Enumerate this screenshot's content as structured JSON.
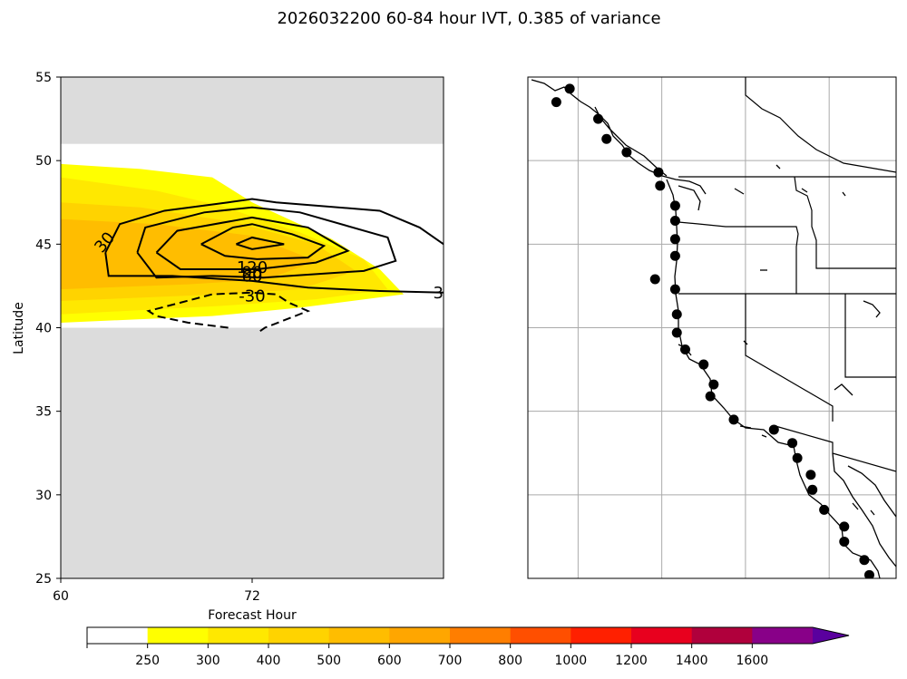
{
  "chart_data": {
    "type": "contour",
    "title": "2026032200 60-84 hour IVT, 0.385 of variance",
    "panels": [
      {
        "name": "hovmoller",
        "xlabel": "Forecast Hour",
        "ylabel": "Latitude",
        "xlim": [
          60,
          84
        ],
        "ylim": [
          25,
          55
        ],
        "xticks": [
          60,
          72
        ],
        "yticks": [
          25,
          30,
          35,
          40,
          45,
          50,
          55
        ],
        "no_data_lat_bands": [
          [
            25,
            40
          ],
          [
            51,
            55
          ]
        ],
        "filled_contours": [
          {
            "level": 250,
            "polygon": [
              [
                60,
                40.3
              ],
              [
                69.5,
                40.7
              ],
              [
                75,
                41.2
              ],
              [
                81.5,
                42
              ],
              [
                80,
                43.5
              ],
              [
                77,
                45.3
              ],
              [
                72,
                47.5
              ],
              [
                69.5,
                49
              ],
              [
                65,
                49.5
              ],
              [
                60,
                49.8
              ]
            ]
          },
          {
            "level": 300,
            "polygon": [
              [
                60,
                40.8
              ],
              [
                70,
                41.3
              ],
              [
                76,
                41.7
              ],
              [
                80.5,
                42.3
              ],
              [
                79,
                44.1
              ],
              [
                75,
                45.7
              ],
              [
                70,
                47.3
              ],
              [
                66,
                48.2
              ],
              [
                60,
                49
              ]
            ]
          },
          {
            "level": 400,
            "polygon": [
              [
                60,
                41.6
              ],
              [
                70,
                42
              ],
              [
                75,
                42.3
              ],
              [
                78.5,
                43.4
              ],
              [
                76,
                45
              ],
              [
                71,
                46.3
              ],
              [
                65,
                47.2
              ],
              [
                60,
                47.5
              ]
            ]
          },
          {
            "level": 500,
            "polygon": [
              [
                60,
                42.3
              ],
              [
                68,
                42.6
              ],
              [
                73,
                42.9
              ],
              [
                76,
                44
              ],
              [
                72,
                45.5
              ],
              [
                66,
                46.2
              ],
              [
                60,
                46.5
              ]
            ]
          }
        ],
        "contours": [
          {
            "level": 30,
            "label": "30",
            "style": "solid",
            "polyline": [
              [
                62.8,
                44.5
              ],
              [
                63.7,
                46.2
              ],
              [
                66.5,
                47
              ],
              [
                70.5,
                47.5
              ],
              [
                72,
                47.7
              ],
              [
                73.5,
                47.5
              ],
              [
                80,
                47
              ],
              [
                82.5,
                46
              ],
              [
                84,
                45
              ]
            ]
          },
          {
            "level": 30,
            "label": "30",
            "style": "solid",
            "polyline": [
              [
                84,
                42.1
              ],
              [
                80,
                42.2
              ],
              [
                75.5,
                42.4
              ],
              [
                72,
                42.8
              ],
              [
                67,
                43.1
              ],
              [
                63,
                43.1
              ],
              [
                62.8,
                44.5
              ]
            ]
          },
          {
            "level": 60,
            "label": "60",
            "style": "solid",
            "polyline": [
              [
                64.8,
                44.5
              ],
              [
                65.3,
                46
              ],
              [
                69,
                46.9
              ],
              [
                72,
                47.2
              ],
              [
                75,
                46.9
              ],
              [
                80.5,
                45.4
              ],
              [
                81,
                44
              ],
              [
                79,
                43.4
              ],
              [
                72.7,
                43
              ],
              [
                69.5,
                43.1
              ],
              [
                66,
                43
              ],
              [
                64.8,
                44.5
              ]
            ]
          },
          {
            "level": 90,
            "label": "90",
            "style": "solid",
            "polyline": [
              [
                66,
                44.5
              ],
              [
                67.3,
                45.8
              ],
              [
                72,
                46.6
              ],
              [
                75.5,
                46
              ],
              [
                78,
                44.6
              ],
              [
                76,
                43.9
              ],
              [
                72.3,
                43.5
              ],
              [
                67.5,
                43.5
              ],
              [
                66,
                44.5
              ]
            ]
          },
          {
            "level": 120,
            "label": "120",
            "style": "solid",
            "polyline": [
              [
                68.8,
                45
              ],
              [
                70.8,
                46
              ],
              [
                72,
                46.2
              ],
              [
                74.5,
                45.6
              ],
              [
                76.5,
                44.9
              ],
              [
                75.5,
                44.2
              ],
              [
                72.3,
                44.1
              ],
              [
                70.3,
                44.3
              ],
              [
                68.8,
                45
              ]
            ]
          },
          {
            "level": 150,
            "label": "",
            "style": "solid",
            "polyline": [
              [
                71,
                45
              ],
              [
                72,
                45.4
              ],
              [
                74,
                45
              ],
              [
                72,
                44.7
              ],
              [
                71,
                45
              ]
            ]
          },
          {
            "level": -30,
            "label": "-30",
            "style": "dashed",
            "polyline": [
              [
                70.5,
                40
              ],
              [
                68,
                40.3
              ],
              [
                66,
                40.7
              ],
              [
                65.5,
                41
              ],
              [
                67.5,
                41.5
              ],
              [
                69.5,
                42
              ],
              [
                72,
                42.1
              ],
              [
                73.5,
                42
              ],
              [
                74.3,
                41.5
              ],
              [
                75.5,
                41
              ],
              [
                72.8,
                40
              ],
              [
                72.5,
                39.8
              ]
            ]
          }
        ]
      },
      {
        "name": "map",
        "region": "US West Coast",
        "lon_lines": [
          -130,
          -125,
          -120,
          -115,
          -110
        ],
        "lat_lines": [
          25,
          30,
          35,
          40,
          45,
          50,
          55
        ],
        "extent": {
          "lon": [
            -133,
            -111
          ],
          "lat": [
            25,
            55
          ]
        },
        "stations": [
          [
            -130.5,
            54.3
          ],
          [
            -131.3,
            53.5
          ],
          [
            -128.8,
            52.5
          ],
          [
            -128.3,
            51.3
          ],
          [
            -127.1,
            50.5
          ],
          [
            -125.2,
            49.3
          ],
          [
            -125.1,
            48.5
          ],
          [
            -124.2,
            47.3
          ],
          [
            -124.2,
            46.4
          ],
          [
            -124.2,
            45.3
          ],
          [
            -124.2,
            44.3
          ],
          [
            -125.4,
            42.9
          ],
          [
            -124.2,
            42.3
          ],
          [
            -124.1,
            40.8
          ],
          [
            -124.1,
            39.7
          ],
          [
            -123.6,
            38.7
          ],
          [
            -122.5,
            37.8
          ],
          [
            -121.9,
            36.6
          ],
          [
            -122.1,
            35.9
          ],
          [
            -120.7,
            34.5
          ],
          [
            -118.3,
            33.9
          ],
          [
            -117.2,
            33.1
          ],
          [
            -116.9,
            32.2
          ],
          [
            -116.1,
            31.2
          ],
          [
            -116,
            30.3
          ],
          [
            -115.3,
            29.1
          ],
          [
            -114.1,
            28.1
          ],
          [
            -114.1,
            27.2
          ],
          [
            -112.9,
            26.1
          ],
          [
            -112.6,
            25.2
          ]
        ]
      }
    ],
    "colorbar": {
      "levels": [
        250,
        300,
        400,
        500,
        600,
        700,
        800,
        1000,
        1200,
        1400,
        1600
      ],
      "tick_labels": [
        "250",
        "300",
        "400",
        "500",
        "600",
        "700",
        "800",
        "1000",
        "1200",
        "1400",
        "1600"
      ],
      "colors": [
        "#ffffff",
        "#ffff00",
        "#ffe800",
        "#ffd300",
        "#ffbd00",
        "#ffa600",
        "#ff7e00",
        "#ff4f00",
        "#ff2000",
        "#e8001e",
        "#b0003c",
        "#880088",
        "#5a009e"
      ],
      "extend": "max"
    }
  }
}
